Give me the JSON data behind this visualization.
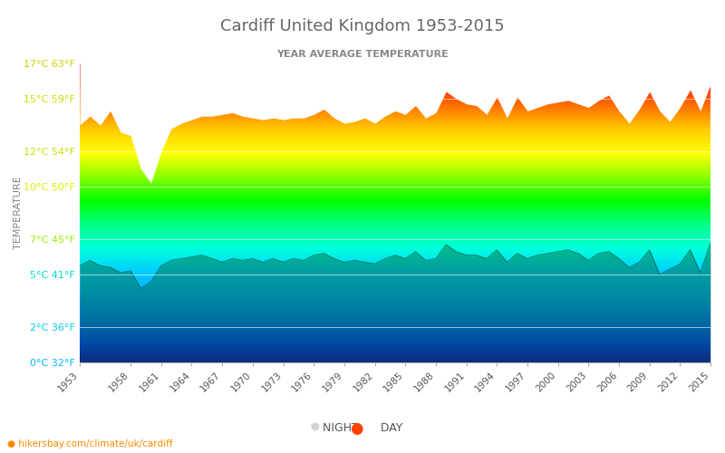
{
  "title": "Cardiff United Kingdom 1953-2015",
  "subtitle": "YEAR AVERAGE TEMPERATURE",
  "ylabel": "TEMPERATURE",
  "year_start": 1953,
  "year_end": 2015,
  "ytick_celsius": [
    0,
    2,
    5,
    7,
    10,
    12,
    15,
    17
  ],
  "ytick_labels": [
    "0°C 32°F",
    "2°C 36°F",
    "5°C 41°F",
    "7°C 45°F",
    "10°C 50°F",
    "12°C 54°F",
    "15°C 59°F",
    "17°C 63°F"
  ],
  "ytick_colors": [
    "#00bbff",
    "#00ccee",
    "#00ddcc",
    "#99ee00",
    "#ddee00",
    "#ccdd00",
    "#ccdd00",
    "#cccc00"
  ],
  "xtick_years": [
    1953,
    1958,
    1961,
    1964,
    1967,
    1970,
    1973,
    1976,
    1979,
    1982,
    1985,
    1988,
    1991,
    1994,
    1997,
    2000,
    2003,
    2006,
    2009,
    2012,
    2015
  ],
  "ymin": 0,
  "ymax": 17,
  "title_color": "#666666",
  "subtitle_color": "#888888",
  "watermark": "hikersbay.com/climate/uk/cardiff",
  "watermark_color": "#ff8800",
  "legend_night_color": "#cccccc",
  "legend_day_color": "#ff4400",
  "rainbow_stops": [
    [
      0.0,
      "#1a00bb"
    ],
    [
      0.06,
      "#0033ff"
    ],
    [
      0.14,
      "#0077ff"
    ],
    [
      0.22,
      "#00aaff"
    ],
    [
      0.3,
      "#00ccff"
    ],
    [
      0.38,
      "#00ffdd"
    ],
    [
      0.46,
      "#00ff88"
    ],
    [
      0.54,
      "#00ff00"
    ],
    [
      0.62,
      "#88ff00"
    ],
    [
      0.7,
      "#ffff00"
    ],
    [
      0.78,
      "#ffcc00"
    ],
    [
      0.84,
      "#ff8800"
    ],
    [
      0.9,
      "#ff4400"
    ],
    [
      0.96,
      "#ff1100"
    ],
    [
      1.0,
      "#ff0000"
    ]
  ],
  "night_overlay_color": "#006633",
  "night_overlay_alpha": 0.45,
  "day_temps": [
    13.5,
    14.0,
    13.5,
    14.3,
    13.1,
    12.9,
    11.0,
    10.2,
    12.0,
    13.3,
    13.6,
    13.8,
    14.0,
    14.0,
    14.1,
    14.2,
    14.0,
    13.9,
    13.8,
    13.9,
    13.8,
    13.9,
    13.9,
    14.1,
    14.4,
    13.9,
    13.6,
    13.7,
    13.9,
    13.6,
    14.0,
    14.3,
    14.1,
    14.6,
    13.9,
    14.2,
    15.4,
    15.0,
    14.7,
    14.6,
    14.1,
    15.1,
    13.9,
    15.1,
    14.3,
    14.5,
    14.7,
    14.8,
    14.9,
    14.7,
    14.5,
    14.9,
    15.2,
    14.3,
    13.6,
    14.4,
    15.4,
    14.3,
    13.7,
    14.5,
    15.5,
    14.3,
    15.8
  ],
  "night_temps": [
    5.5,
    5.8,
    5.5,
    5.4,
    5.1,
    5.2,
    4.2,
    4.6,
    5.5,
    5.8,
    5.9,
    6.0,
    6.1,
    5.9,
    5.7,
    5.9,
    5.8,
    5.9,
    5.7,
    5.9,
    5.7,
    5.9,
    5.8,
    6.1,
    6.2,
    5.9,
    5.7,
    5.8,
    5.7,
    5.6,
    5.9,
    6.1,
    5.9,
    6.3,
    5.8,
    5.9,
    6.7,
    6.3,
    6.1,
    6.1,
    5.9,
    6.4,
    5.7,
    6.2,
    5.9,
    6.1,
    6.2,
    6.3,
    6.4,
    6.2,
    5.8,
    6.2,
    6.3,
    5.9,
    5.4,
    5.7,
    6.4,
    5.0,
    5.3,
    5.6,
    6.4,
    5.1,
    6.8
  ]
}
